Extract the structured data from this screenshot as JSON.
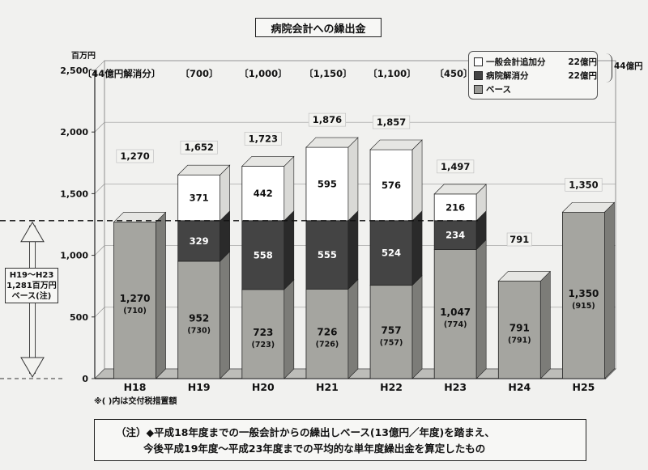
{
  "title": "病院会計への繰出金",
  "y_unit": "百万円",
  "footnote": "※( )内は交付税措置額",
  "note": {
    "line1": "（注）◆平成18年度までの一般会計からの繰出しベース(13億円／年度)を踏まえ、",
    "line2": "今後平成19年度～平成23年度までの平均的な単年度繰出金を算定したもの"
  },
  "legend": {
    "total": "44億円",
    "items": [
      {
        "label": "一般会計追加分",
        "amount": "22億円",
        "color": "#ffffff"
      },
      {
        "label": "病院解消分",
        "amount": "22億円",
        "color": "#444444"
      },
      {
        "label": "ベース",
        "amount": "",
        "color": "#9a9a96"
      }
    ]
  },
  "base_note": {
    "line1": "H19～H23",
    "line2": "1,281百万円",
    "line3": "ベース(注)"
  },
  "bracket_labels": [
    "〔44億円解消分〕",
    "〔700〕",
    "〔1,000〕",
    "〔1,150〕",
    "〔1,100〕",
    "〔450〕"
  ],
  "chart_data": {
    "type": "bar",
    "stacked": true,
    "categories": [
      "H18",
      "H19",
      "H20",
      "H21",
      "H22",
      "H23",
      "H24",
      "H25"
    ],
    "series": [
      {
        "name": "ベース",
        "values": [
          1270,
          952,
          723,
          726,
          757,
          1047,
          791,
          1350
        ],
        "color": "#9a9a96"
      },
      {
        "name": "病院解消分",
        "values": [
          0,
          329,
          558,
          555,
          524,
          234,
          0,
          0
        ],
        "color": "#444444"
      },
      {
        "name": "一般会計追加分",
        "values": [
          0,
          371,
          442,
          595,
          576,
          216,
          0,
          0
        ],
        "color": "#ffffff"
      }
    ],
    "totals": [
      1270,
      1652,
      1723,
      1876,
      1857,
      1497,
      791,
      1350
    ],
    "total_labels": [
      "1,270",
      "1,652",
      "1,723",
      "1,876",
      "1,857",
      "1,497",
      "791",
      "1,350"
    ],
    "base_labels": [
      "1,270",
      "952",
      "723",
      "726",
      "757",
      "1,047",
      "791",
      "1,350"
    ],
    "subsidy_labels": [
      "(710)",
      "(730)",
      "(723)",
      "(726)",
      "(757)",
      "(774)",
      "(791)",
      "(915)"
    ],
    "yticks": [
      0,
      500,
      1000,
      1500,
      2000,
      2500
    ],
    "ytick_labels": [
      "0",
      "500",
      "1,000",
      "1,500",
      "2,000",
      "2,500"
    ],
    "ylim": [
      0,
      2500
    ],
    "reference_line": 1281,
    "grid": true
  }
}
